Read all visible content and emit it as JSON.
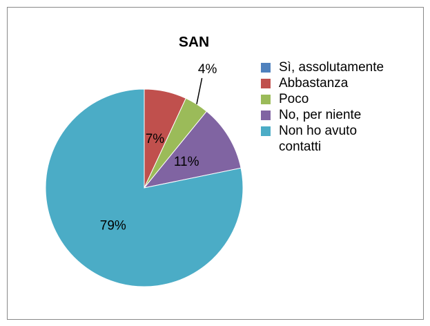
{
  "chart_data": {
    "type": "pie",
    "title": "SAN",
    "categories": [
      "Sì, assolutamente",
      "Abbastanza",
      "Poco",
      "No, per niente",
      "Non ho avuto contatti"
    ],
    "values": [
      0,
      7,
      4,
      11,
      79
    ],
    "value_labels": [
      null,
      "7%",
      "4%",
      "11%",
      "79%"
    ],
    "colors": [
      "#4f81bd",
      "#c0504d",
      "#9bbb59",
      "#8064a2",
      "#4bacc6"
    ],
    "legend": "right"
  }
}
